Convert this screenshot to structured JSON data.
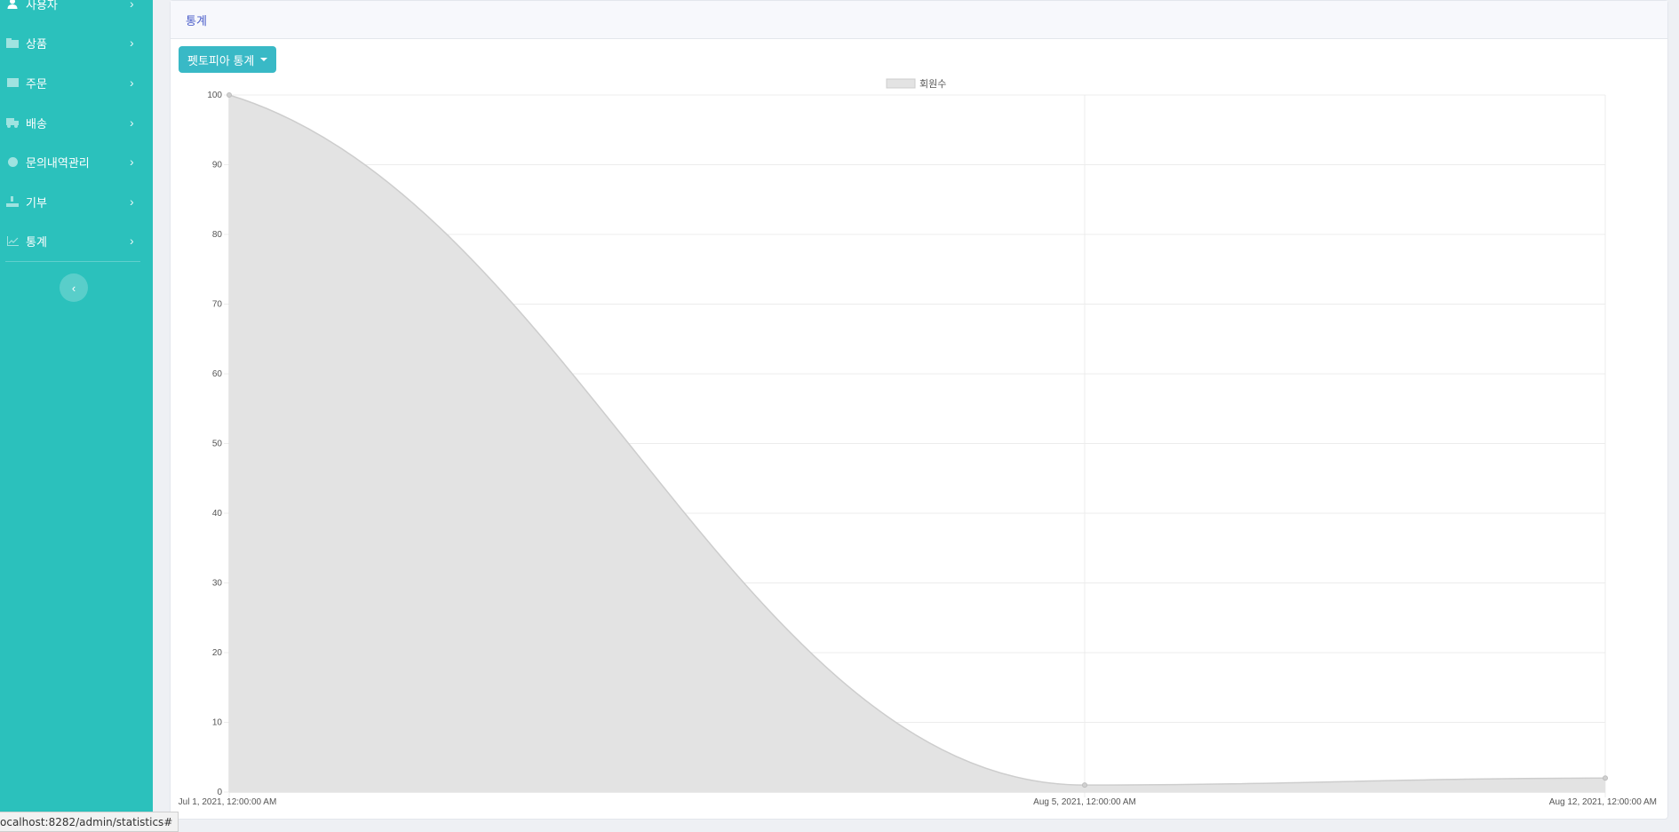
{
  "sidebar": {
    "items": [
      {
        "label": "사용자",
        "icon": "user-icon"
      },
      {
        "label": "상품",
        "icon": "box-icon"
      },
      {
        "label": "주문",
        "icon": "order-icon"
      },
      {
        "label": "배송",
        "icon": "truck-icon"
      },
      {
        "label": "문의내역관리",
        "icon": "question-icon"
      },
      {
        "label": "기부",
        "icon": "donate-icon"
      },
      {
        "label": "통계",
        "icon": "chart-icon"
      }
    ]
  },
  "card": {
    "title": "통계",
    "dropdown_label": "펫토피아 통계"
  },
  "chart_data": {
    "type": "area",
    "x": [
      "Jul 1, 2021, 12:00:00 AM",
      "Aug 5, 2021, 12:00:00 AM",
      "Aug 12, 2021, 12:00:00 AM"
    ],
    "series": [
      {
        "name": "회원수",
        "values": [
          100,
          1,
          2
        ]
      }
    ],
    "ylim": [
      0,
      100
    ],
    "yticks": [
      0,
      10,
      20,
      30,
      40,
      50,
      60,
      70,
      80,
      90,
      100
    ],
    "grid": true,
    "legend": "top-center",
    "colors": {
      "fill": "#e3e3e3",
      "line": "#cdcdcd",
      "grid": "#ececec"
    }
  },
  "status_bar": {
    "url": "ocalhost:8282/admin/statistics#"
  }
}
